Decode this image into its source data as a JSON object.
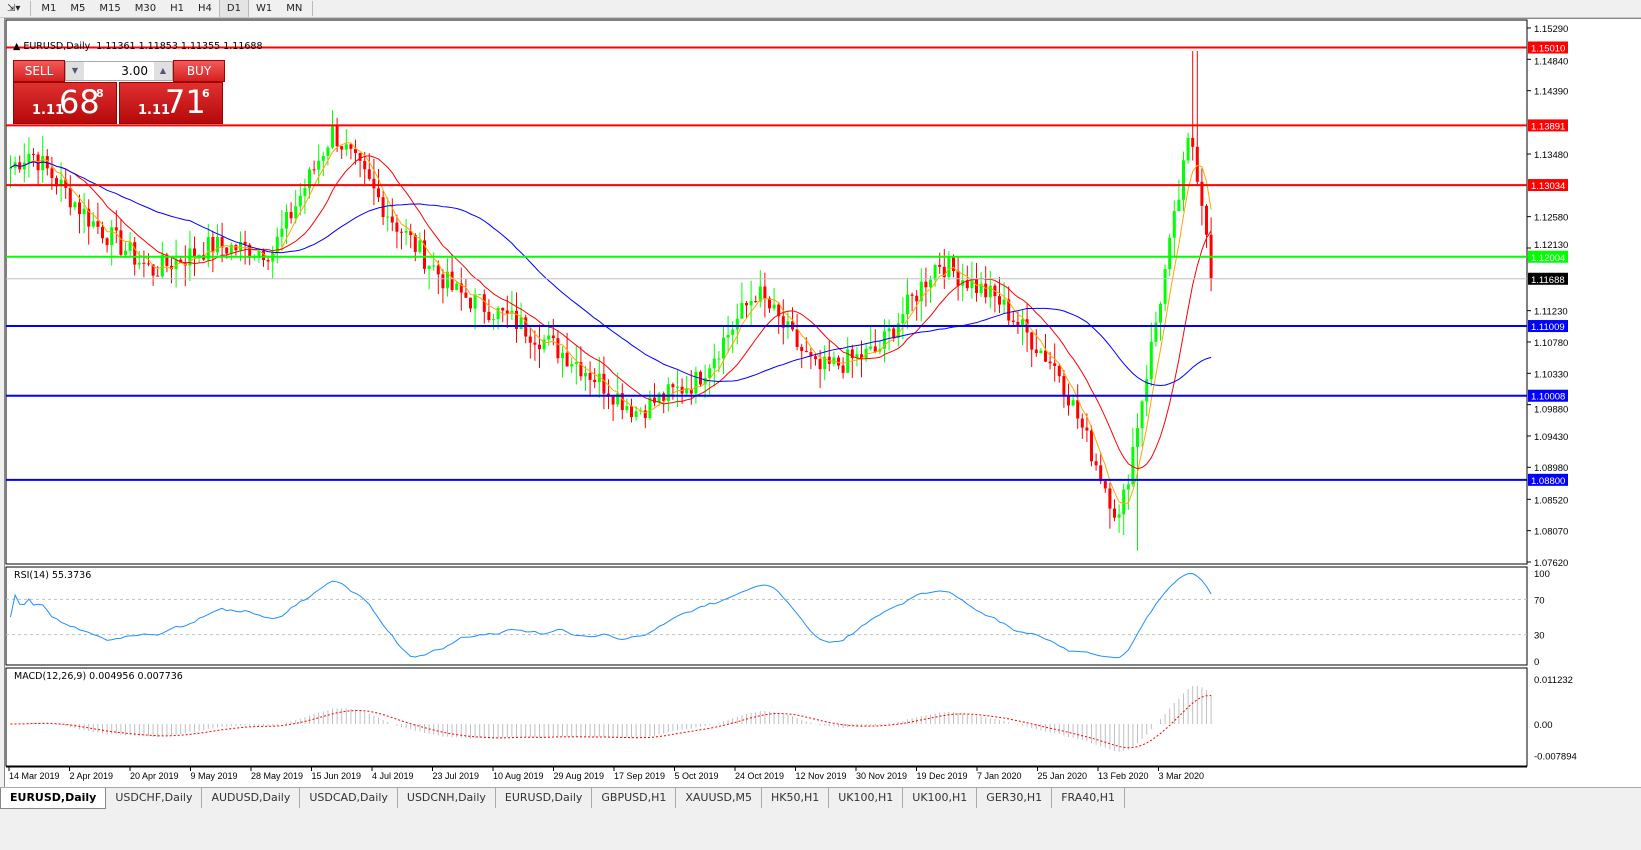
{
  "toolbar": {
    "timeframes": [
      "M1",
      "M5",
      "M15",
      "M30",
      "H1",
      "H4",
      "D1",
      "W1",
      "MN"
    ],
    "active": "D1"
  },
  "chart": {
    "title": "EURUSD,Daily",
    "ohlc": "1.11361 1.11853 1.11355 1.11688",
    "trade": {
      "sell_label": "SELL",
      "buy_label": "BUY",
      "lot": "3.00",
      "sell_prefix": "1.11",
      "sell_big": "68",
      "sell_pip": "8",
      "buy_prefix": "1.11",
      "buy_big": "71",
      "buy_pip": "6"
    },
    "price_ticks": [
      "1.15290",
      "1.14840",
      "1.14390",
      "1.13480",
      "1.12580",
      "1.12130",
      "1.11230",
      "1.10780",
      "1.10330",
      "1.09880",
      "1.09430",
      "1.08980",
      "1.08520",
      "1.08070",
      "1.07620"
    ],
    "levels": [
      {
        "price": "1.15010",
        "color": "#ff0000"
      },
      {
        "price": "1.13891",
        "color": "#ff0000"
      },
      {
        "price": "1.13034",
        "color": "#ff0000"
      },
      {
        "price": "1.12004",
        "color": "#00ff00"
      },
      {
        "price": "1.11009",
        "color": "#0000ff"
      },
      {
        "price": "1.10008",
        "color": "#0000ff"
      },
      {
        "price": "1.08800",
        "color": "#0000ff"
      }
    ],
    "current_price": "1.11688",
    "date_labels": [
      "14 Mar 2019",
      "2 Apr 2019",
      "20 Apr 2019",
      "9 May 2019",
      "28 May 2019",
      "15 Jun 2019",
      "4 Jul 2019",
      "23 Jul 2019",
      "10 Aug 2019",
      "29 Aug 2019",
      "17 Sep 2019",
      "5 Oct 2019",
      "24 Oct 2019",
      "12 Nov 2019",
      "30 Nov 2019",
      "19 Dec 2019",
      "7 Jan 2020",
      "25 Jan 2020",
      "13 Feb 2020",
      "3 Mar 2020"
    ],
    "colors": {
      "bull": "#00ff00",
      "bear": "#ff0000",
      "ma_fast": "#ffa500",
      "ma_mid": "#ff0000",
      "ma_slow": "#0000ff",
      "rsi": "#1e90ff",
      "macd_hist": "#c0c0c0",
      "macd_signal": "#ff0000"
    }
  },
  "rsi": {
    "label": "RSI(14) 55.3736",
    "ticks": [
      "100",
      "70",
      "30",
      "0"
    ]
  },
  "macd": {
    "label": "MACD(12,26,9) 0.004956 0.007736",
    "ticks": [
      "0.011232",
      "0.00",
      "-0.007894"
    ]
  },
  "chart_data": {
    "type": "candlestick",
    "approx_closes_at_date_labels": [
      1.1352,
      1.1252,
      1.118,
      1.1216,
      1.1209,
      1.1381,
      1.1252,
      1.1151,
      1.1108,
      1.1051,
      1.0979,
      1.1022,
      1.1151,
      1.1036,
      1.1065,
      1.1194,
      1.1137,
      1.1036,
      1.0821,
      1.1295
    ],
    "last_close": 1.11688,
    "high": 1.1496,
    "low": 1.0778,
    "ylim": [
      1.0762,
      1.1529
    ]
  },
  "tabs": [
    "EURUSD,Daily",
    "USDCHF,Daily",
    "AUDUSD,Daily",
    "USDCAD,Daily",
    "USDCNH,Daily",
    "EURUSD,Daily",
    "GBPUSD,H1",
    "XAUUSD,M5",
    "HK50,H1",
    "UK100,H1",
    "UK100,H1",
    "GER30,H1",
    "FRA40,H1"
  ]
}
